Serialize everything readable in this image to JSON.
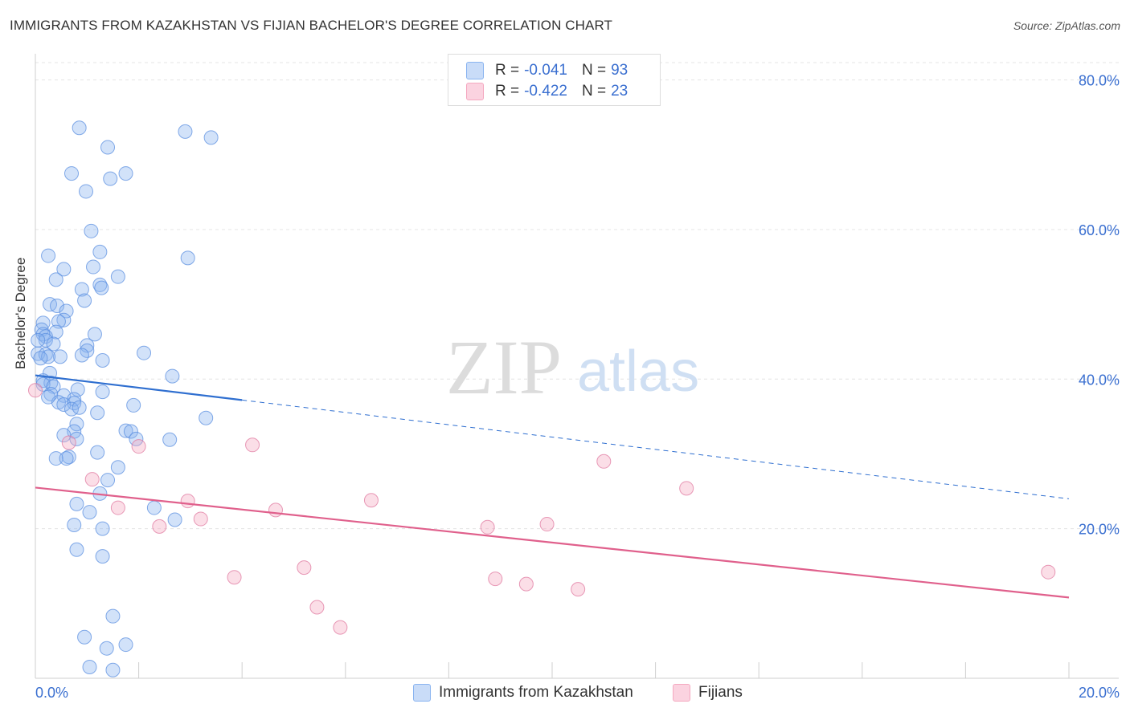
{
  "header": {
    "title": "IMMIGRANTS FROM KAZAKHSTAN VS FIJIAN BACHELOR'S DEGREE CORRELATION CHART",
    "source": "Source: ZipAtlas.com"
  },
  "legend": {
    "rows": [
      {
        "r_label": "R = ",
        "r_value": "-0.041",
        "n_label": "N = ",
        "n_value": "93",
        "color": "#8ab4f0"
      },
      {
        "r_label": "R = ",
        "r_value": "-0.422",
        "n_label": "N = ",
        "n_value": "23",
        "color": "#f4a8c0"
      }
    ]
  },
  "bottom_legend": {
    "items": [
      {
        "label": "Immigrants from Kazakhstan",
        "color": "#8ab4f0"
      },
      {
        "label": "Fijians",
        "color": "#f4a8c0"
      }
    ]
  },
  "watermark": {
    "zip": "ZIP",
    "atlas": "atlas"
  },
  "chart_data": {
    "type": "scatter",
    "title": "IMMIGRANTS FROM KAZAKHSTAN VS FIJIAN BACHELOR'S DEGREE CORRELATION CHART",
    "xlabel": "",
    "ylabel": "Bachelor's Degree",
    "xlim": [
      0,
      20
    ],
    "ylim": [
      0,
      83.5
    ],
    "x_tick_labels": [
      "0.0%",
      "20.0%"
    ],
    "y_tick_labels": [
      "20.0%",
      "40.0%",
      "60.0%",
      "80.0%"
    ],
    "y_ticks": [
      20,
      40,
      60,
      80
    ],
    "grid": true,
    "series": [
      {
        "name": "Immigrants from Kazakhstan",
        "color": "#8ab4f0",
        "stroke": "#5b8fe0",
        "r": -0.041,
        "n": 93,
        "trend": {
          "x0": 0.0,
          "y0": 40.5,
          "x1": 4.0,
          "y1": 37.2,
          "x_dash_end": 20.0,
          "y_dash_end": 24.0,
          "color": "#2f6fd0"
        },
        "points": [
          [
            0.85,
            73.6
          ],
          [
            2.9,
            73.1
          ],
          [
            3.4,
            72.3
          ],
          [
            1.4,
            71.0
          ],
          [
            0.7,
            67.5
          ],
          [
            1.75,
            67.5
          ],
          [
            1.45,
            66.8
          ],
          [
            0.98,
            65.1
          ],
          [
            1.08,
            59.8
          ],
          [
            1.25,
            57.0
          ],
          [
            0.25,
            56.5
          ],
          [
            2.95,
            56.2
          ],
          [
            0.55,
            54.7
          ],
          [
            1.12,
            55.0
          ],
          [
            1.6,
            53.7
          ],
          [
            0.4,
            53.3
          ],
          [
            1.25,
            52.6
          ],
          [
            0.9,
            52.0
          ],
          [
            1.28,
            52.2
          ],
          [
            0.95,
            50.5
          ],
          [
            0.28,
            50.0
          ],
          [
            0.42,
            49.8
          ],
          [
            0.6,
            49.1
          ],
          [
            0.55,
            47.9
          ],
          [
            0.45,
            47.7
          ],
          [
            0.15,
            47.5
          ],
          [
            0.12,
            46.6
          ],
          [
            0.15,
            46.0
          ],
          [
            0.4,
            46.3
          ],
          [
            0.2,
            45.7
          ],
          [
            1.15,
            46.0
          ],
          [
            0.2,
            45.2
          ],
          [
            0.05,
            45.2
          ],
          [
            0.35,
            44.7
          ],
          [
            1.0,
            44.5
          ],
          [
            0.05,
            43.4
          ],
          [
            0.2,
            43.3
          ],
          [
            1.0,
            43.8
          ],
          [
            2.1,
            43.5
          ],
          [
            0.9,
            43.2
          ],
          [
            0.48,
            43.0
          ],
          [
            0.25,
            43.0
          ],
          [
            0.1,
            42.8
          ],
          [
            1.3,
            42.5
          ],
          [
            0.28,
            40.8
          ],
          [
            2.65,
            40.4
          ],
          [
            0.15,
            39.8
          ],
          [
            0.3,
            39.5
          ],
          [
            0.15,
            39.3
          ],
          [
            0.35,
            39.0
          ],
          [
            0.82,
            38.6
          ],
          [
            1.3,
            38.3
          ],
          [
            0.3,
            38.0
          ],
          [
            0.55,
            37.8
          ],
          [
            0.75,
            37.3
          ],
          [
            0.75,
            36.8
          ],
          [
            0.45,
            36.9
          ],
          [
            0.55,
            36.6
          ],
          [
            1.9,
            36.5
          ],
          [
            0.7,
            36.0
          ],
          [
            0.85,
            36.2
          ],
          [
            1.2,
            35.5
          ],
          [
            3.3,
            34.8
          ],
          [
            0.8,
            34.0
          ],
          [
            1.75,
            33.1
          ],
          [
            1.85,
            33.0
          ],
          [
            0.75,
            33.0
          ],
          [
            0.55,
            32.5
          ],
          [
            0.8,
            32.0
          ],
          [
            1.95,
            32.0
          ],
          [
            2.6,
            31.9
          ],
          [
            1.2,
            30.2
          ],
          [
            0.65,
            29.6
          ],
          [
            0.4,
            29.4
          ],
          [
            0.6,
            29.4
          ],
          [
            1.6,
            28.2
          ],
          [
            1.4,
            26.5
          ],
          [
            1.25,
            24.7
          ],
          [
            0.8,
            23.3
          ],
          [
            2.3,
            22.8
          ],
          [
            1.05,
            22.2
          ],
          [
            2.7,
            21.2
          ],
          [
            0.75,
            20.5
          ],
          [
            1.3,
            20.0
          ],
          [
            0.8,
            17.2
          ],
          [
            1.3,
            16.3
          ],
          [
            1.5,
            8.3
          ],
          [
            0.95,
            5.5
          ],
          [
            1.38,
            4.0
          ],
          [
            1.75,
            4.5
          ],
          [
            1.05,
            1.5
          ],
          [
            1.5,
            1.1
          ],
          [
            0.25,
            37.6
          ]
        ]
      },
      {
        "name": "Fijians",
        "color": "#f4a8c0",
        "stroke": "#e07aa0",
        "r": -0.422,
        "n": 23,
        "trend": {
          "x0": 0.0,
          "y0": 25.5,
          "x1": 20.0,
          "y1": 10.8,
          "color": "#e0608c"
        },
        "points": [
          [
            0.0,
            38.5
          ],
          [
            0.65,
            31.5
          ],
          [
            2.0,
            31.0
          ],
          [
            4.2,
            31.2
          ],
          [
            1.1,
            26.6
          ],
          [
            1.6,
            22.8
          ],
          [
            2.95,
            23.7
          ],
          [
            4.65,
            22.5
          ],
          [
            6.5,
            23.8
          ],
          [
            3.2,
            21.3
          ],
          [
            2.4,
            20.3
          ],
          [
            8.75,
            20.2
          ],
          [
            9.9,
            20.6
          ],
          [
            11.0,
            29.0
          ],
          [
            12.6,
            25.4
          ],
          [
            3.85,
            13.5
          ],
          [
            5.2,
            14.8
          ],
          [
            8.9,
            13.3
          ],
          [
            9.5,
            12.6
          ],
          [
            10.5,
            11.9
          ],
          [
            19.6,
            14.2
          ],
          [
            5.45,
            9.5
          ],
          [
            5.9,
            6.8
          ]
        ]
      }
    ]
  }
}
